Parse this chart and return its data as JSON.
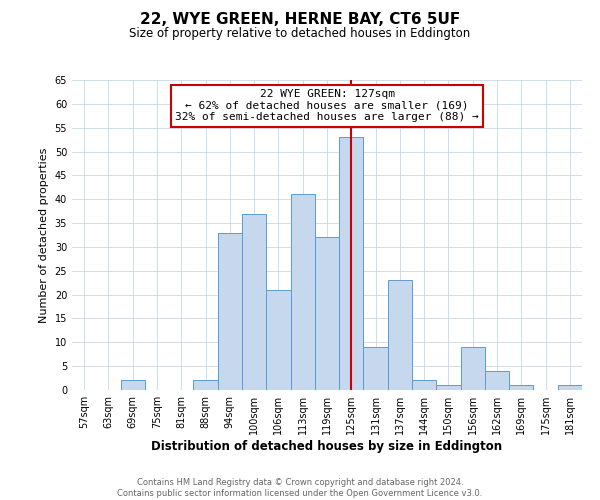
{
  "title": "22, WYE GREEN, HERNE BAY, CT6 5UF",
  "subtitle": "Size of property relative to detached houses in Eddington",
  "xlabel": "Distribution of detached houses by size in Eddington",
  "ylabel": "Number of detached properties",
  "footer_line1": "Contains HM Land Registry data © Crown copyright and database right 2024.",
  "footer_line2": "Contains public sector information licensed under the Open Government Licence v3.0.",
  "bin_labels": [
    "57sqm",
    "63sqm",
    "69sqm",
    "75sqm",
    "81sqm",
    "88sqm",
    "94sqm",
    "100sqm",
    "106sqm",
    "113sqm",
    "119sqm",
    "125sqm",
    "131sqm",
    "137sqm",
    "144sqm",
    "150sqm",
    "156sqm",
    "162sqm",
    "169sqm",
    "175sqm",
    "181sqm"
  ],
  "bar_heights": [
    0,
    0,
    2,
    0,
    0,
    2,
    33,
    37,
    21,
    41,
    32,
    53,
    9,
    23,
    2,
    1,
    9,
    4,
    1,
    0,
    1
  ],
  "bar_color": "#c5d8ed",
  "bar_edge_color": "#5b9bd5",
  "highlight_index": 11,
  "highlight_line_color": "#cc0000",
  "ylim": [
    0,
    65
  ],
  "yticks": [
    0,
    5,
    10,
    15,
    20,
    25,
    30,
    35,
    40,
    45,
    50,
    55,
    60,
    65
  ],
  "annotation_title": "22 WYE GREEN: 127sqm",
  "annotation_line1": "← 62% of detached houses are smaller (169)",
  "annotation_line2": "32% of semi-detached houses are larger (88) →",
  "annotation_box_color": "#cc0000",
  "grid_color": "#c8d8e8",
  "background_color": "#ffffff",
  "title_fontsize": 11,
  "subtitle_fontsize": 8.5,
  "ylabel_fontsize": 8,
  "xlabel_fontsize": 8.5,
  "tick_fontsize": 7,
  "footer_fontsize": 6,
  "annotation_fontsize": 8
}
